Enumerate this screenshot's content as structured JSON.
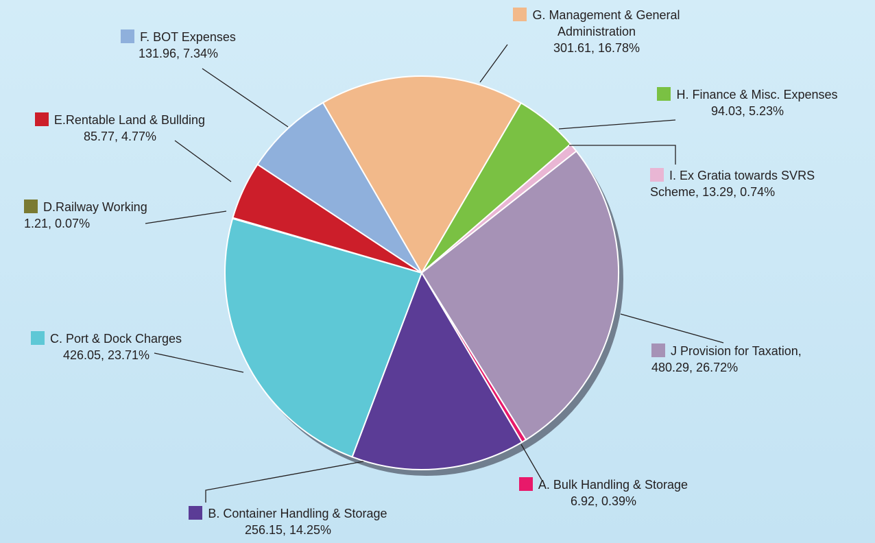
{
  "chart_data": {
    "type": "pie",
    "categories": [
      "A. Bulk Handling & Storage",
      "B. Container Handling & Storage",
      "C. Port & Dock Charges",
      "D.Railway Working",
      "E.Rentable Land & Bullding",
      "F. BOT Expenses",
      "G. Management & General Administration",
      "H. Finance & Misc. Expenses",
      "I. Ex Gratia towards SVRS Scheme,",
      "J Provision for Taxation,"
    ],
    "values": [
      6.92,
      256.15,
      426.05,
      1.21,
      85.77,
      131.96,
      301.61,
      94.03,
      13.29,
      480.29
    ],
    "value_labels": [
      "6.92, 0.39%",
      "256.15,  14.25%",
      "426.05,  23.71%",
      "1.21,  0.07%",
      "85.77, 4.77%",
      "131.96,  7.34%",
      "301.61, 16.78%",
      "94.03,  5.23%",
      "13.29, 0.74%",
      "480.29,  26.72%"
    ],
    "colors": [
      "#e8196a",
      "#5b3c96",
      "#5ec8d6",
      "#7a7a32",
      "#cc1e2a",
      "#8fb0dc",
      "#f2b98a",
      "#7ac143",
      "#e9b6d4",
      "#a692b6"
    ]
  }
}
